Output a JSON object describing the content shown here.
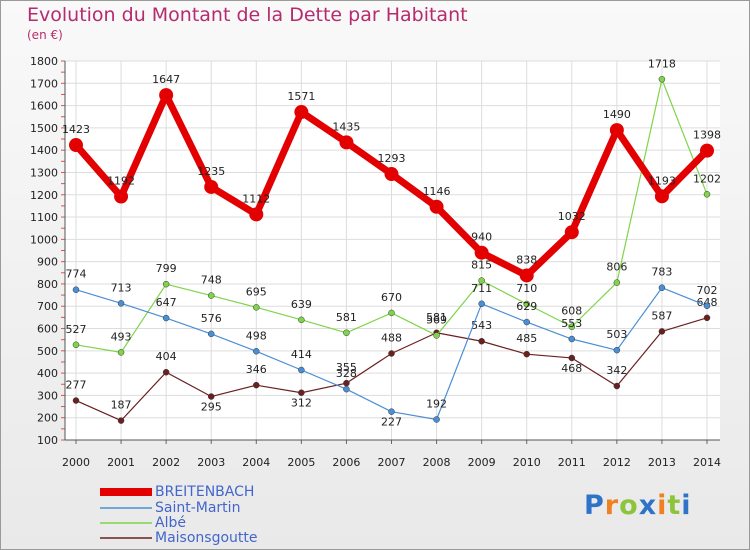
{
  "chart_data": {
    "type": "line",
    "title": "Evolution du Montant de la Dette par Habitant",
    "unit_label": "(en €)",
    "x": [
      "2000",
      "2001",
      "2002",
      "2003",
      "2004",
      "2005",
      "2006",
      "2007",
      "2008",
      "2009",
      "2010",
      "2011",
      "2012",
      "2013",
      "2014"
    ],
    "ylim": [
      100,
      1800
    ],
    "yticks": [
      100,
      200,
      300,
      400,
      500,
      600,
      700,
      800,
      900,
      1000,
      1100,
      1200,
      1300,
      1400,
      1500,
      1600,
      1700,
      1800
    ],
    "grid": true,
    "legend_position": "bottom-left",
    "series": [
      {
        "name": "BREITENBACH",
        "color": "#e30000",
        "values": [
          1423,
          1192,
          1647,
          1235,
          1112,
          1571,
          1435,
          1293,
          1146,
          940,
          838,
          1032,
          1490,
          1193,
          1398
        ]
      },
      {
        "name": "Saint-Martin",
        "color": "#4a8fd6",
        "values": [
          774,
          713,
          647,
          576,
          498,
          414,
          328,
          227,
          192,
          711,
          629,
          553,
          503,
          783,
          702
        ]
      },
      {
        "name": "Albé",
        "color": "#7fd44a",
        "values": [
          527,
          493,
          799,
          748,
          695,
          639,
          581,
          670,
          569,
          815,
          710,
          608,
          806,
          1718,
          1202
        ]
      },
      {
        "name": "Maisonsgoutte",
        "color": "#6b2020",
        "values": [
          277,
          187,
          404,
          295,
          346,
          312,
          355,
          488,
          581,
          543,
          485,
          468,
          342,
          587,
          648
        ]
      }
    ]
  },
  "logo": {
    "text": "Proxiti",
    "letters": [
      "P",
      "r",
      "o",
      "x",
      "i",
      "t",
      "i"
    ]
  }
}
